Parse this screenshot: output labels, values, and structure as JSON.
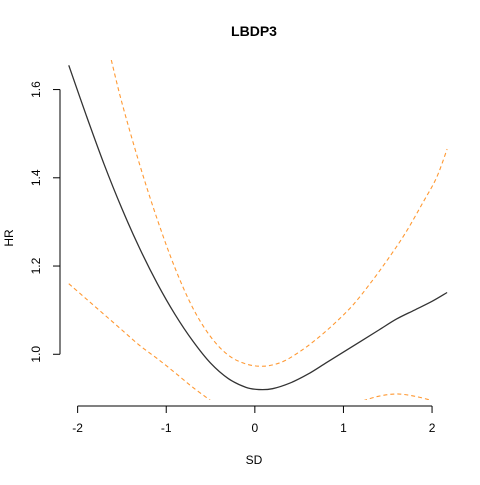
{
  "chart_data": {
    "type": "line",
    "title": "LBDP3",
    "xlabel": "SD",
    "ylabel": "HR",
    "xlim": [
      -2.12,
      2.18
    ],
    "ylim": [
      0.885,
      1.667
    ],
    "x_ticks": [
      -2,
      -1,
      0,
      1,
      2
    ],
    "y_ticks": [
      1.0,
      1.2,
      1.4,
      1.6
    ],
    "x_tick_labels": [
      "-2",
      "-1",
      "0",
      "1",
      "2"
    ],
    "y_tick_labels": [
      "1.0",
      "1.2",
      "1.4",
      "1.6"
    ],
    "grid": false,
    "legend": "none",
    "series": [
      {
        "role": "estimate",
        "color": "#333333",
        "dash": "solid",
        "points": [
          [
            -2.1,
            1.655
          ],
          [
            -1.9,
            1.54
          ],
          [
            -1.7,
            1.43
          ],
          [
            -1.5,
            1.33
          ],
          [
            -1.3,
            1.24
          ],
          [
            -1.1,
            1.16
          ],
          [
            -0.9,
            1.09
          ],
          [
            -0.7,
            1.03
          ],
          [
            -0.5,
            0.98
          ],
          [
            -0.3,
            0.945
          ],
          [
            -0.1,
            0.925
          ],
          [
            0.05,
            0.92
          ],
          [
            0.2,
            0.922
          ],
          [
            0.4,
            0.935
          ],
          [
            0.6,
            0.955
          ],
          [
            0.8,
            0.98
          ],
          [
            1.0,
            1.005
          ],
          [
            1.2,
            1.03
          ],
          [
            1.4,
            1.055
          ],
          [
            1.6,
            1.08
          ],
          [
            1.8,
            1.1
          ],
          [
            2.0,
            1.12
          ],
          [
            2.17,
            1.14
          ]
        ]
      },
      {
        "role": "upper-bound",
        "color": "#ff9933",
        "dash": "dashed",
        "points": [
          [
            -1.62,
            1.667
          ],
          [
            -1.5,
            1.57
          ],
          [
            -1.3,
            1.43
          ],
          [
            -1.1,
            1.305
          ],
          [
            -0.9,
            1.195
          ],
          [
            -0.7,
            1.105
          ],
          [
            -0.5,
            1.04
          ],
          [
            -0.3,
            0.998
          ],
          [
            -0.1,
            0.978
          ],
          [
            0.1,
            0.973
          ],
          [
            0.3,
            0.982
          ],
          [
            0.5,
            1.005
          ],
          [
            0.7,
            1.035
          ],
          [
            0.9,
            1.07
          ],
          [
            1.1,
            1.11
          ],
          [
            1.3,
            1.16
          ],
          [
            1.5,
            1.215
          ],
          [
            1.7,
            1.275
          ],
          [
            1.9,
            1.345
          ],
          [
            2.05,
            1.4
          ],
          [
            2.17,
            1.465
          ]
        ]
      },
      {
        "role": "lower-bound",
        "color": "#ff9933",
        "dash": "dashed",
        "points": [
          [
            -2.1,
            1.16
          ],
          [
            -1.9,
            1.125
          ],
          [
            -1.7,
            1.09
          ],
          [
            -1.5,
            1.055
          ],
          [
            -1.3,
            1.02
          ],
          [
            -1.1,
            0.99
          ],
          [
            -0.9,
            0.958
          ],
          [
            -0.7,
            0.925
          ],
          [
            -0.5,
            0.895
          ],
          [
            -0.4,
            0.878
          ]
        ]
      },
      {
        "role": "lower-bound",
        "color": "#ff9933",
        "dash": "dashed",
        "points": [
          [
            1.0,
            0.878
          ],
          [
            1.2,
            0.893
          ],
          [
            1.4,
            0.905
          ],
          [
            1.6,
            0.91
          ],
          [
            1.8,
            0.905
          ],
          [
            2.0,
            0.895
          ],
          [
            2.17,
            0.885
          ]
        ]
      }
    ]
  }
}
